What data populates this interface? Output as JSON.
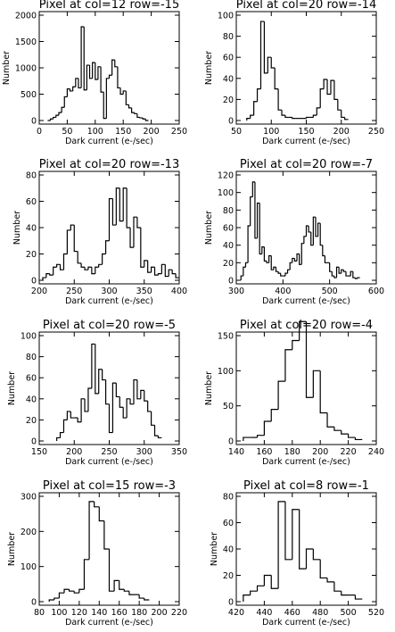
{
  "chart_data": [
    {
      "type": "bar",
      "title": "Pixel at col=12 row=-15",
      "xlabel": "Dark current (e-/sec)",
      "ylabel": "Number",
      "xlim": [
        0,
        250
      ],
      "ylim": [
        0,
        2000
      ],
      "xticks": [
        "0",
        "50",
        "100",
        "150",
        "200",
        "250"
      ],
      "yticks": [
        "0",
        "500",
        "1000",
        "1500",
        "2000"
      ],
      "bin_start": 15,
      "bin_width": 5,
      "values": [
        0,
        30,
        60,
        100,
        150,
        250,
        450,
        600,
        560,
        640,
        800,
        620,
        1780,
        580,
        1050,
        800,
        1100,
        780,
        1020,
        540,
        40,
        800,
        860,
        1150,
        1020,
        620,
        500,
        560,
        300,
        240,
        150,
        130,
        60,
        50,
        30,
        0
      ]
    },
    {
      "type": "bar",
      "title": "Pixel at col=20 row=-14",
      "xlabel": "Dark current (e-/sec)",
      "ylabel": "Number",
      "xlim": [
        50,
        250
      ],
      "ylim": [
        0,
        100
      ],
      "xticks": [
        "50",
        "100",
        "150",
        "200",
        "250"
      ],
      "yticks": [
        "0",
        "20",
        "40",
        "60",
        "80",
        "100"
      ],
      "bin_start": 65,
      "bin_width": 5,
      "values": [
        2,
        5,
        18,
        30,
        94,
        45,
        60,
        50,
        30,
        10,
        5,
        3,
        3,
        2,
        2,
        2,
        2,
        3,
        3,
        5,
        12,
        30,
        39,
        25,
        38,
        20,
        10,
        3,
        1
      ]
    },
    {
      "type": "bar",
      "title": "Pixel at col=20 row=-13",
      "xlabel": "Dark current (e-/sec)",
      "ylabel": "Number",
      "xlim": [
        200,
        400
      ],
      "ylim": [
        0,
        80
      ],
      "xticks": [
        "200",
        "250",
        "300",
        "350",
        "400"
      ],
      "yticks": [
        "0",
        "20",
        "40",
        "60",
        "80"
      ],
      "bin_start": 205,
      "bin_width": 5,
      "values": [
        2,
        5,
        4,
        10,
        12,
        8,
        20,
        38,
        42,
        22,
        13,
        10,
        8,
        10,
        5,
        10,
        12,
        20,
        30,
        62,
        42,
        70,
        45,
        70,
        40,
        25,
        48,
        40,
        10,
        15,
        6,
        10,
        4,
        5,
        12,
        3,
        8,
        5,
        2
      ]
    },
    {
      "type": "bar",
      "title": "Pixel at col=20 row=-7",
      "xlabel": "Dark current (e-/sec)",
      "ylabel": "Number",
      "xlim": [
        300,
        600
      ],
      "ylim": [
        0,
        120
      ],
      "xticks": [
        "300",
        "400",
        "500",
        "600"
      ],
      "yticks": [
        "0",
        "20",
        "40",
        "60",
        "80",
        "100",
        "120"
      ],
      "bin_start": 310,
      "bin_width": 5,
      "values": [
        5,
        15,
        20,
        62,
        95,
        112,
        48,
        88,
        30,
        38,
        22,
        20,
        28,
        12,
        15,
        10,
        8,
        5,
        5,
        8,
        12,
        20,
        25,
        22,
        30,
        18,
        42,
        50,
        62,
        55,
        40,
        72,
        50,
        65,
        40,
        28,
        20,
        20,
        10,
        5,
        3,
        15,
        8,
        12,
        10,
        5,
        5,
        10,
        3,
        2,
        3
      ]
    },
    {
      "type": "bar",
      "title": "Pixel at col=20 row=-5",
      "xlabel": "Dark current (e-/sec)",
      "ylabel": "Number",
      "xlim": [
        150,
        350
      ],
      "ylim": [
        0,
        100
      ],
      "xticks": [
        "150",
        "200",
        "250",
        "300",
        "350"
      ],
      "yticks": [
        "0",
        "20",
        "40",
        "60",
        "80",
        "100"
      ],
      "bin_start": 175,
      "bin_width": 5,
      "values": [
        3,
        8,
        20,
        28,
        22,
        22,
        18,
        40,
        28,
        50,
        92,
        45,
        68,
        58,
        35,
        8,
        55,
        42,
        32,
        22,
        40,
        35,
        58,
        40,
        48,
        38,
        28,
        15,
        5,
        3
      ]
    },
    {
      "type": "bar",
      "title": "Pixel at col=20 row=-4",
      "xlabel": "Dark current (e-/sec)",
      "ylabel": "Number",
      "xlim": [
        140,
        240
      ],
      "ylim": [
        0,
        150
      ],
      "xticks": [
        "140",
        "160",
        "180",
        "200",
        "220",
        "240"
      ],
      "yticks": [
        "0",
        "50",
        "100",
        "150"
      ],
      "bin_start": 145,
      "bin_width": 5,
      "values": [
        5,
        5,
        8,
        28,
        45,
        85,
        130,
        143,
        170,
        62,
        100,
        40,
        20,
        15,
        10,
        5,
        2
      ]
    },
    {
      "type": "bar",
      "title": "Pixel at col=15 row=-3",
      "xlabel": "Dark current (e-/sec)",
      "ylabel": "Number",
      "xlim": [
        80,
        220
      ],
      "ylim": [
        0,
        300
      ],
      "xticks": [
        "80",
        "100",
        "120",
        "140",
        "160",
        "180",
        "200",
        "220"
      ],
      "yticks": [
        "0",
        "100",
        "200",
        "300"
      ],
      "bin_start": 90,
      "bin_width": 5,
      "values": [
        5,
        10,
        25,
        35,
        30,
        25,
        35,
        120,
        285,
        270,
        230,
        150,
        30,
        60,
        35,
        30,
        20,
        20,
        10,
        5
      ]
    },
    {
      "type": "bar",
      "title": "Pixel at col=8 row=-1",
      "xlabel": "Dark current (e-/sec)",
      "ylabel": "Number",
      "xlim": [
        420,
        520
      ],
      "ylim": [
        0,
        80
      ],
      "xticks": [
        "420",
        "440",
        "460",
        "480",
        "500",
        "520"
      ],
      "yticks": [
        "0",
        "20",
        "40",
        "60",
        "80"
      ],
      "bin_start": 425,
      "bin_width": 5,
      "values": [
        5,
        8,
        12,
        20,
        10,
        76,
        32,
        70,
        25,
        40,
        32,
        18,
        15,
        8,
        5,
        5,
        2
      ]
    }
  ]
}
